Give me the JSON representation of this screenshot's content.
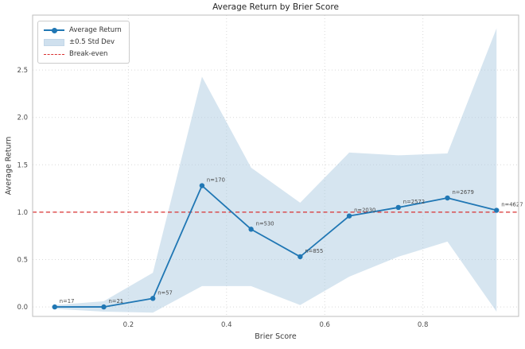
{
  "title": "Average Return by Brier Score",
  "axes": {
    "xlabel": "Brier Score",
    "ylabel": "Average Return"
  },
  "legend": {
    "items": [
      {
        "label": "Average Return",
        "icon": "line-marker-icon"
      },
      {
        "label": "±0.5 Std Dev",
        "icon": "band-swatch-icon"
      },
      {
        "label": "Break-even",
        "icon": "dashed-line-icon"
      }
    ]
  },
  "colors": {
    "line": "#2077b4",
    "marker": "#2077b4",
    "band_fill": "#aecbe1",
    "band_opacity": "0.5",
    "breakeven": "#d93030",
    "grid": "#d9d9d9",
    "spine": "#bdbdbd",
    "tick_text": "#4d4d4d",
    "annotation_text": "#4a4a4a"
  },
  "chart_data": {
    "type": "line",
    "title": "Average Return by Brier Score",
    "xlabel": "Brier Score",
    "ylabel": "Average Return",
    "x": [
      0.05,
      0.15,
      0.25,
      0.35,
      0.45,
      0.55,
      0.65,
      0.75,
      0.85,
      0.95
    ],
    "series": [
      {
        "name": "Average Return",
        "values": [
          0.0,
          0.0,
          0.09,
          1.28,
          0.82,
          0.53,
          0.96,
          1.05,
          1.15,
          1.02
        ]
      }
    ],
    "band": {
      "name": "±0.5 Std Dev",
      "top": [
        0.02,
        0.06,
        0.36,
        2.43,
        1.47,
        1.1,
        1.63,
        1.6,
        1.62,
        2.94
      ],
      "bottom": [
        -0.02,
        -0.05,
        -0.06,
        0.22,
        0.22,
        0.02,
        0.32,
        0.53,
        0.69,
        -0.05
      ]
    },
    "annotations": [
      "n=17",
      "n=21",
      "n=57",
      "n=170",
      "n=530",
      "n=855",
      "n=2030",
      "n=2572",
      "n=2679",
      "n=4627"
    ],
    "break_even": 1.0,
    "xticks": [
      0.2,
      0.4,
      0.6,
      0.8
    ],
    "yticks": [
      0.0,
      0.5,
      1.0,
      1.5,
      2.0,
      2.5
    ],
    "xlim": [
      0.005,
      0.995
    ],
    "ylim": [
      -0.1,
      3.08
    ],
    "grid": true,
    "legend_position": "upper left"
  }
}
